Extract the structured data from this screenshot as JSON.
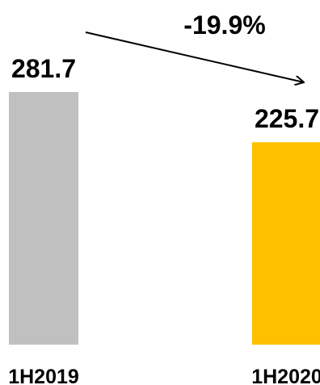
{
  "chart_data": {
    "type": "bar",
    "categories": [
      "1H2019",
      "1H2020"
    ],
    "values": [
      281.7,
      225.7
    ],
    "value_labels": [
      "281.7",
      "225.7"
    ],
    "colors": [
      "#c0c0c0",
      "#ffc000"
    ],
    "ylim": [
      0,
      281.7
    ],
    "grid": false,
    "annotation": {
      "text": "-19.9%",
      "type": "arrow",
      "from": "1H2019",
      "to": "1H2020"
    }
  }
}
